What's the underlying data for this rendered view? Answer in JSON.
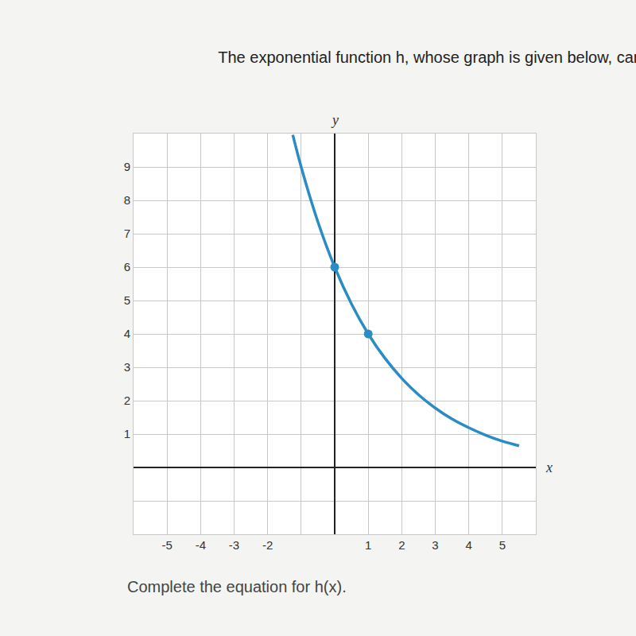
{
  "chart_data": {
    "type": "line",
    "title": "The exponential function h, whose graph is given below, can",
    "annotations": [
      "Complete the equation for h(x)."
    ],
    "x_label": "x",
    "y_label": "y",
    "series": [
      {
        "type": "line",
        "color": "#2a8cc4",
        "line_style": "solid",
        "x": [
          -1.25,
          -1,
          -0.5,
          0,
          0.5,
          1,
          1.5,
          2,
          2.5,
          3,
          3.5,
          4,
          4.5,
          5,
          5.5
        ],
        "values": [
          9.96,
          9,
          7.35,
          6,
          4.9,
          4,
          3.27,
          2.67,
          2.18,
          1.78,
          1.45,
          1.19,
          0.97,
          0.79,
          0.65
        ]
      },
      {
        "type": "scatter",
        "color": "#2a8cc4",
        "marker": "circle",
        "x": [
          0,
          1
        ],
        "values": [
          6,
          4
        ]
      }
    ],
    "xlim": [
      -6,
      6
    ],
    "ylim": [
      -2,
      10
    ],
    "xticks": [
      -5,
      -4,
      -3,
      -2,
      1,
      2,
      3,
      4,
      5
    ],
    "yticks": [
      1,
      2,
      3,
      4,
      5,
      6,
      7,
      8,
      9
    ],
    "grid": true
  }
}
